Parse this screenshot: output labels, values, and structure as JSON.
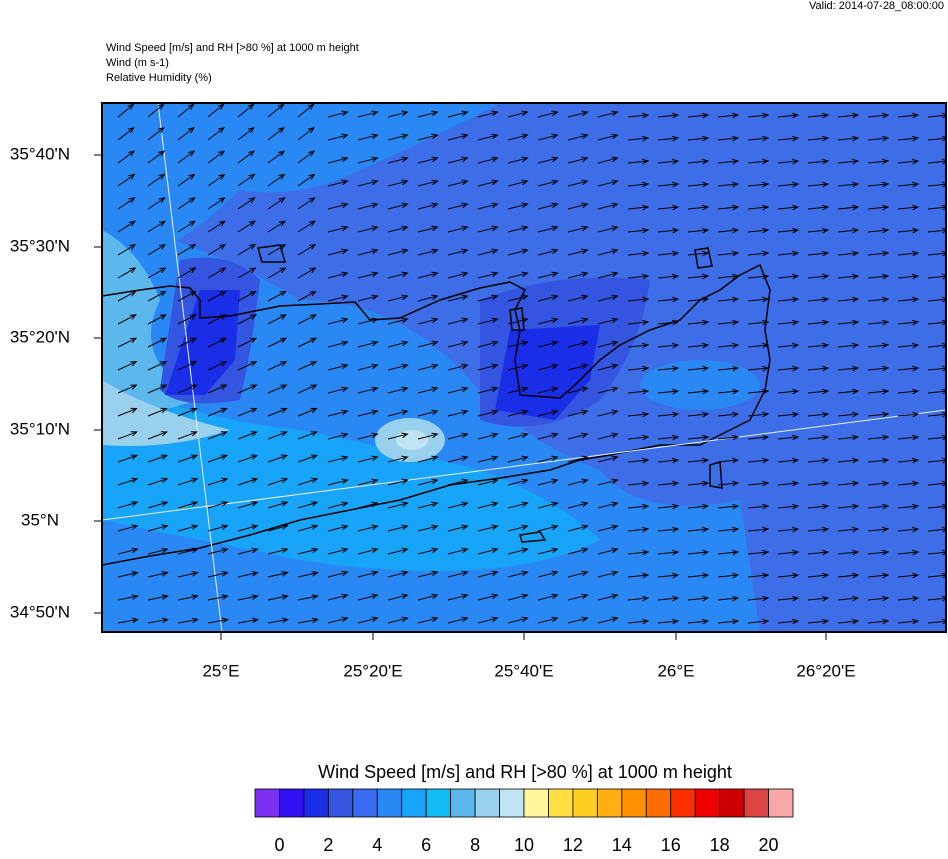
{
  "valid": "Valid: 2014-07-28_08:00:00",
  "title_lines": [
    "Wind Speed [m/s] and RH [>80 %] at 1000 m height",
    "Wind   (m s-1)",
    "Relative Humidity   (%)"
  ],
  "lat_labels": [
    "35°40'N",
    "35°30'N",
    "35°20'N",
    "35°10'N",
    "35°N",
    "34°50'N"
  ],
  "lon_labels": [
    "25°E",
    "25°20'E",
    "25°40'E",
    "26°E",
    "26°20'E"
  ],
  "colorbar": {
    "title": "Wind Speed [m/s] and RH [>80 %] at 1000 m height",
    "colors": [
      "#7b2ff0",
      "#3010f0",
      "#1a2ee8",
      "#3355e0",
      "#3a6af0",
      "#2a88f5",
      "#18a4f8",
      "#14bcf5",
      "#5cb8ec",
      "#98d0ee",
      "#c0e4f4",
      "#fff59a",
      "#ffe040",
      "#ffcc20",
      "#ffb010",
      "#ff9000",
      "#ff6c00",
      "#ff3000",
      "#ee0000",
      "#cc0000",
      "#dd4444",
      "#f8a8a8"
    ],
    "ticks": [
      0,
      2,
      4,
      6,
      8,
      10,
      12,
      14,
      16,
      18,
      20
    ]
  }
}
